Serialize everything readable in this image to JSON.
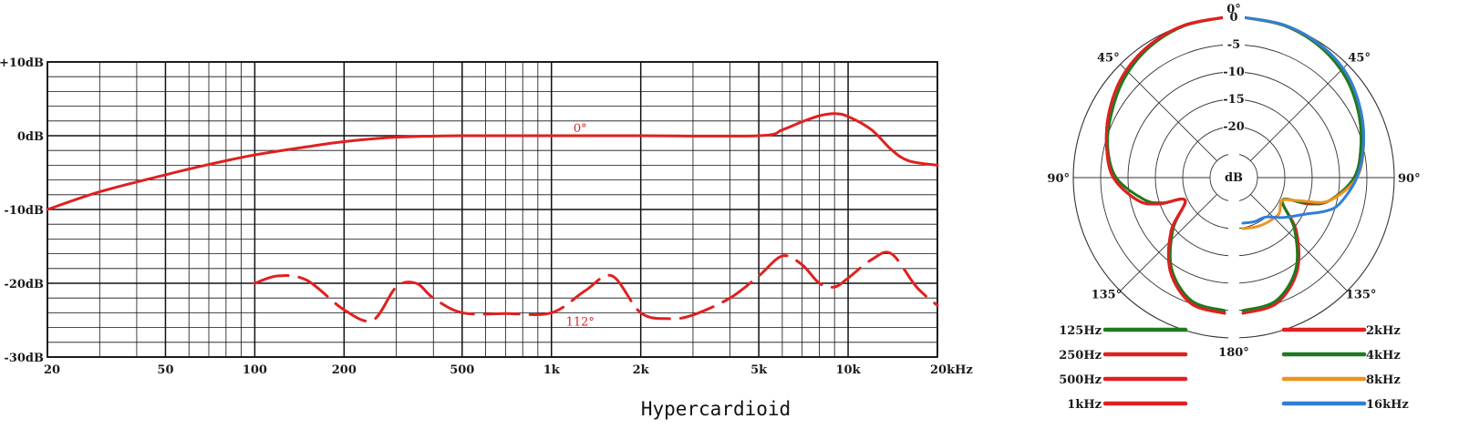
{
  "caption": "Hypercardioid",
  "chart_data": [
    {
      "type": "line",
      "xscale": "log",
      "xlim": [
        20,
        20000
      ],
      "ylim": [
        -30,
        10
      ],
      "x_ticks": [
        {
          "value": 20,
          "label": "20"
        },
        {
          "value": 50,
          "label": "50"
        },
        {
          "value": 100,
          "label": "100"
        },
        {
          "value": 200,
          "label": "200"
        },
        {
          "value": 500,
          "label": "500"
        },
        {
          "value": 1000,
          "label": "1k"
        },
        {
          "value": 2000,
          "label": "2k"
        },
        {
          "value": 5000,
          "label": "5k"
        },
        {
          "value": 10000,
          "label": "10k"
        },
        {
          "value": 20000,
          "label": "20kHz"
        }
      ],
      "y_ticks": [
        {
          "value": 10,
          "label": "+10dB"
        },
        {
          "value": 0,
          "label": "0dB"
        },
        {
          "value": -10,
          "label": "-10dB"
        },
        {
          "value": -20,
          "label": "-20dB"
        },
        {
          "value": -30,
          "label": "-30dB"
        }
      ],
      "grid": true,
      "series": [
        {
          "name": "0°",
          "color": "#e02020",
          "dash": false,
          "x": [
            20,
            30,
            50,
            70,
            100,
            150,
            200,
            300,
            500,
            1000,
            2000,
            5000,
            6000,
            7000,
            8000,
            9000,
            10000,
            12000,
            14000,
            16000,
            20000
          ],
          "y": [
            -10,
            -7.6,
            -5.3,
            -3.9,
            -2.6,
            -1.5,
            -0.8,
            -0.2,
            0,
            0,
            0,
            0,
            0.8,
            1.9,
            2.7,
            3,
            2.6,
            0.8,
            -1.9,
            -3.4,
            -4
          ]
        },
        {
          "name": "112°",
          "color": "#e02020",
          "dash": true,
          "x": [
            100,
            120,
            150,
            200,
            250,
            300,
            350,
            400,
            500,
            700,
            1000,
            1300,
            1600,
            2000,
            2500,
            3000,
            4000,
            5000,
            6000,
            7000,
            8000,
            9000,
            10000,
            12000,
            14000,
            17000,
            20000
          ],
          "y": [
            -20,
            -19,
            -19.6,
            -23.6,
            -25,
            -20.5,
            -20,
            -22,
            -24,
            -24.1,
            -24,
            -21,
            -19,
            -24,
            -24.8,
            -24.3,
            -22,
            -19,
            -16.3,
            -17.5,
            -20,
            -20.5,
            -19.3,
            -16.8,
            -16,
            -20.5,
            -23
          ]
        }
      ]
    },
    {
      "type": "polar",
      "unit": "dB",
      "rlim": [
        -25,
        0
      ],
      "r_ticks": [
        {
          "value": 0,
          "label": "0"
        },
        {
          "value": -5,
          "label": "-5"
        },
        {
          "value": -10,
          "label": "-10"
        },
        {
          "value": -15,
          "label": "-15"
        },
        {
          "value": -20,
          "label": "-20"
        }
      ],
      "angle_labels": [
        {
          "angle": 0,
          "label": "0°"
        },
        {
          "angle": 45,
          "label": "45°"
        },
        {
          "angle": 90,
          "label": "90°"
        },
        {
          "angle": 135,
          "label": "135°"
        },
        {
          "angle": 180,
          "label": "180°"
        }
      ],
      "theta": [
        0,
        15,
        30,
        45,
        60,
        75,
        90,
        105,
        112,
        120,
        135,
        150,
        165,
        180
      ],
      "left_series": [
        {
          "name": "125Hz",
          "color": "#1e7a1e",
          "r": [
            0,
            -0.6,
            -1.8,
            -3.5,
            -5.5,
            -7.2,
            -9.5,
            -14,
            -17,
            -21,
            -16,
            -10,
            -6,
            -5
          ]
        },
        {
          "name": "250Hz",
          "color": "#e02020",
          "r": [
            0,
            -0.5,
            -1.5,
            -3,
            -5,
            -7,
            -9,
            -13,
            -16.5,
            -21,
            -15.5,
            -9.5,
            -5.5,
            -4.5
          ]
        },
        {
          "name": "500Hz",
          "color": "#e02020",
          "r": [
            0,
            -0.5,
            -1.5,
            -3,
            -5,
            -7,
            -9,
            -13,
            -16.5,
            -21,
            -15.5,
            -9.5,
            -5.5,
            -4.5
          ]
        },
        {
          "name": "1kHz",
          "color": "#e02020",
          "r": [
            0,
            -0.5,
            -1.5,
            -3,
            -5,
            -7,
            -9,
            -13,
            -16.5,
            -21,
            -15.5,
            -9.5,
            -5.5,
            -4.5
          ]
        }
      ],
      "right_series": [
        {
          "name": "2kHz",
          "color": "#e02020",
          "r": [
            0,
            -0.5,
            -1.5,
            -3,
            -5,
            -7,
            -9,
            -13,
            -16.5,
            -21,
            -15.5,
            -9.5,
            -5.5,
            -4.5
          ]
        },
        {
          "name": "4kHz",
          "color": "#1e7a1e",
          "r": [
            0,
            -0.5,
            -1.5,
            -3,
            -5,
            -7,
            -9,
            -13,
            -17,
            -21,
            -16,
            -10,
            -6,
            -5
          ]
        },
        {
          "name": "8kHz",
          "color": "#f0921e",
          "r": [
            0,
            -0.4,
            -1.2,
            -2.5,
            -4.5,
            -6.5,
            -8.5,
            -13,
            -18,
            -21,
            -20,
            -20,
            -20,
            -20
          ]
        },
        {
          "name": "16kHz",
          "color": "#2f7fd6",
          "r": [
            0,
            -0.4,
            -1.2,
            -2.5,
            -4.5,
            -6.5,
            -8.5,
            -11,
            -13,
            -16,
            -19,
            -21,
            -21,
            -21
          ]
        }
      ]
    }
  ]
}
